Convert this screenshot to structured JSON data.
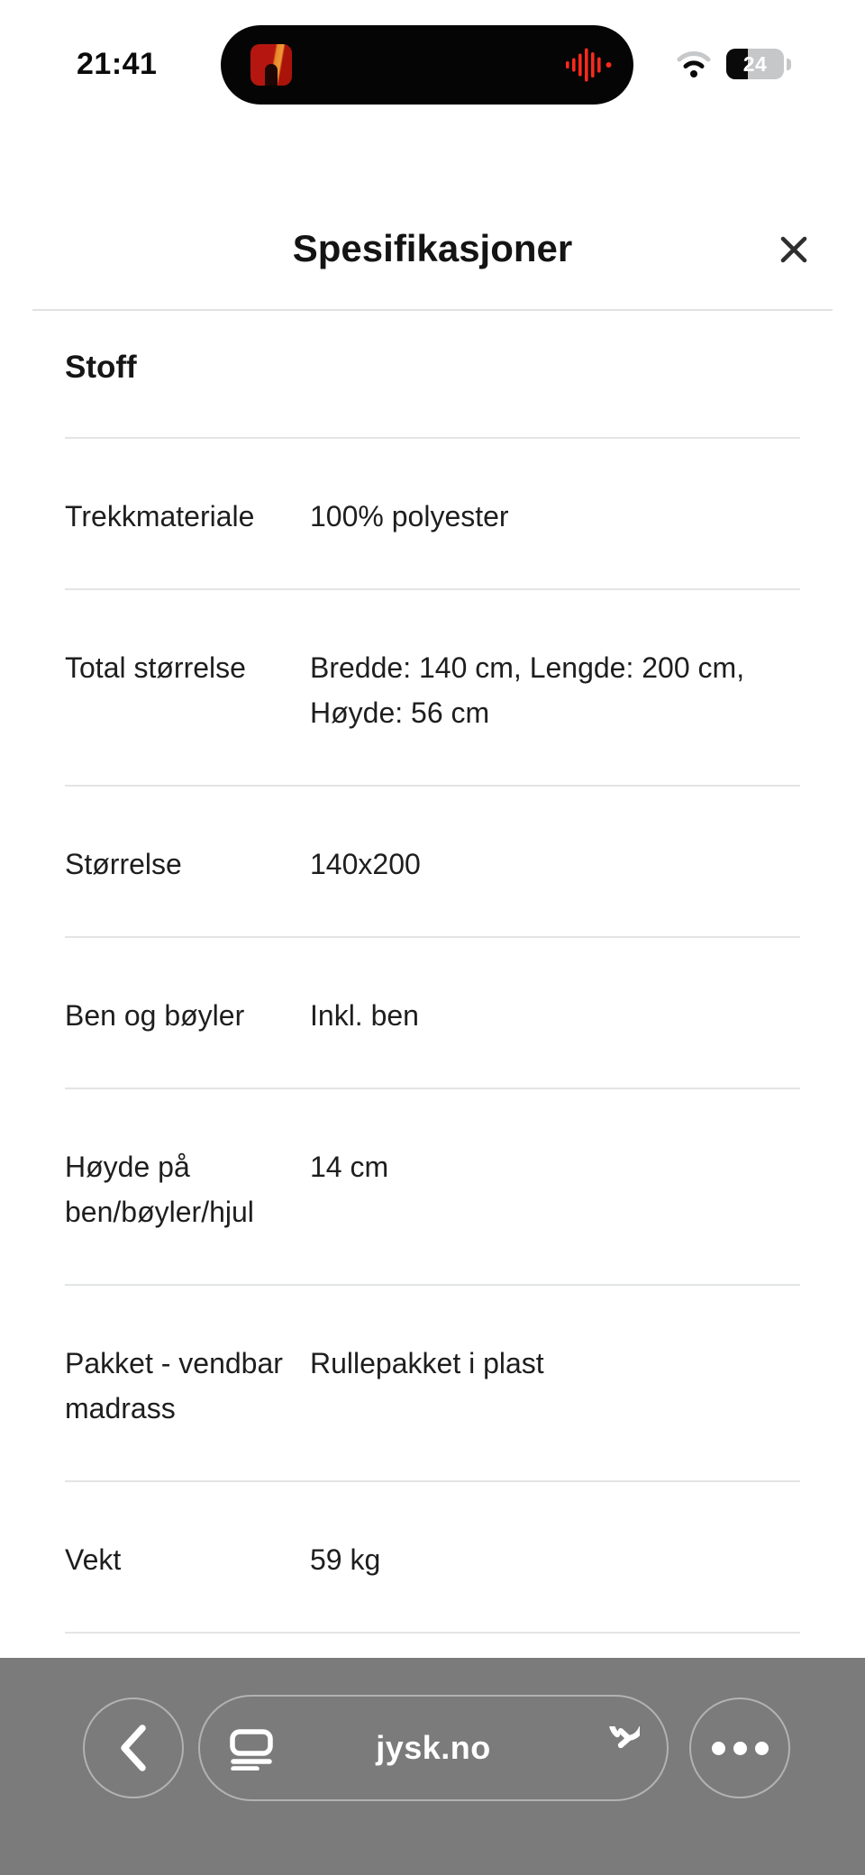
{
  "status_bar": {
    "time": "21:41",
    "battery_percent": "24",
    "icons": {
      "now_playing": "album-art",
      "waveform": "audio-waveform",
      "wifi": "wifi-partial",
      "battery": "battery-low"
    }
  },
  "modal": {
    "title": "Spesifikasjoner",
    "close_icon": "close-x",
    "section_heading": "Stoff",
    "rows": [
      {
        "label": "Trekkmateriale",
        "value": "100% polyester"
      },
      {
        "label": "Total størrelse",
        "value": "Bredde: 140 cm, Lengde: 200 cm, Høyde: 56 cm"
      },
      {
        "label": "Størrelse",
        "value": "140x200"
      },
      {
        "label": "Ben og bøyler",
        "value": "Inkl. ben"
      },
      {
        "label": "Høyde på ben/bøyler/hjul",
        "value": "14 cm"
      },
      {
        "label": "Pakket - vendbar madrass",
        "value": "Rullepakket i plast"
      },
      {
        "label": "Vekt",
        "value": "59 kg"
      }
    ]
  },
  "browser_toolbar": {
    "url": "jysk.no",
    "icons": [
      "back-chevron",
      "reader-page",
      "reload",
      "more-ellipsis"
    ]
  },
  "colors": {
    "waveform_red": "#fa291c",
    "toolbar_gray": "#7b7b7b",
    "divider_gray": "#e2e4e5",
    "text_dark": "#1e1e1e",
    "island_black": "#050505"
  }
}
